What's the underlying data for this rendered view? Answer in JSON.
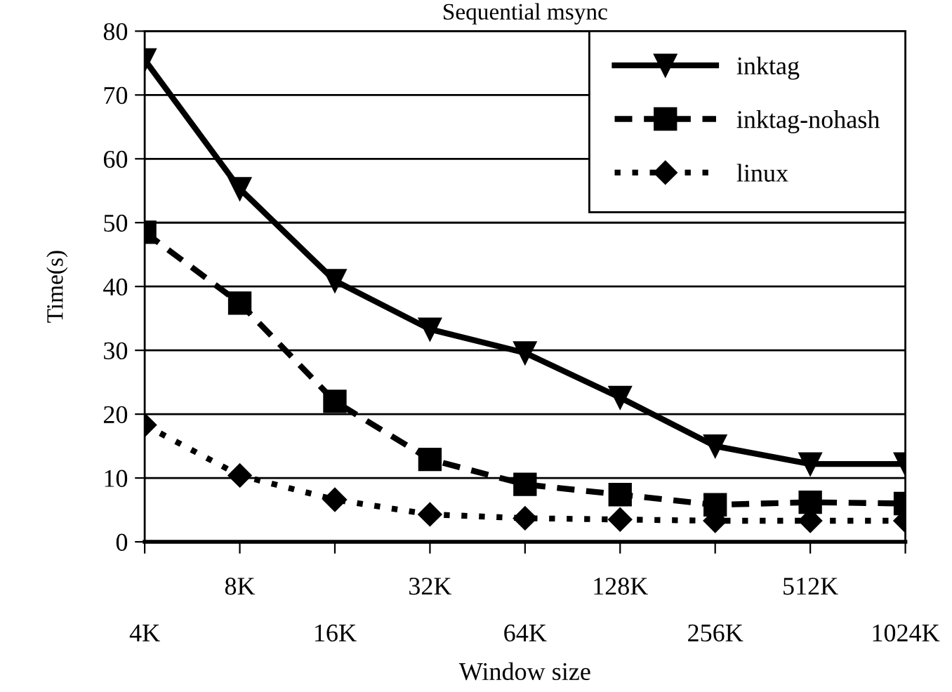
{
  "chart_data": {
    "type": "line",
    "title": "Sequential msync",
    "xlabel": "Window size",
    "ylabel": "Time(s)",
    "categories": [
      "4K",
      "8K",
      "16K",
      "32K",
      "64K",
      "128K",
      "256K",
      "512K",
      "1024K"
    ],
    "series": [
      {
        "name": "inktag",
        "color": "#000000",
        "marker": "triangle",
        "line_style": "solid",
        "values": [
          75.5,
          55.3,
          40.9,
          33.3,
          29.6,
          22.6,
          15,
          12.2,
          12.2
        ]
      },
      {
        "name": "inktag-nohash",
        "color": "#000000",
        "marker": "square",
        "line_style": "dashed",
        "values": [
          48.5,
          37.4,
          22,
          12.9,
          9,
          7.4,
          5.8,
          6.2,
          6
        ]
      },
      {
        "name": "linux",
        "color": "#000000",
        "marker": "diamond",
        "line_style": "dotted",
        "values": [
          18.3,
          10.4,
          6.6,
          4.3,
          3.7,
          3.5,
          3.3,
          3.3,
          3.3
        ]
      }
    ],
    "ylim": [
      0,
      80
    ],
    "yticks": [
      0,
      10,
      20,
      30,
      40,
      50,
      60,
      70,
      80
    ],
    "grid": "y",
    "legend": "top right"
  }
}
